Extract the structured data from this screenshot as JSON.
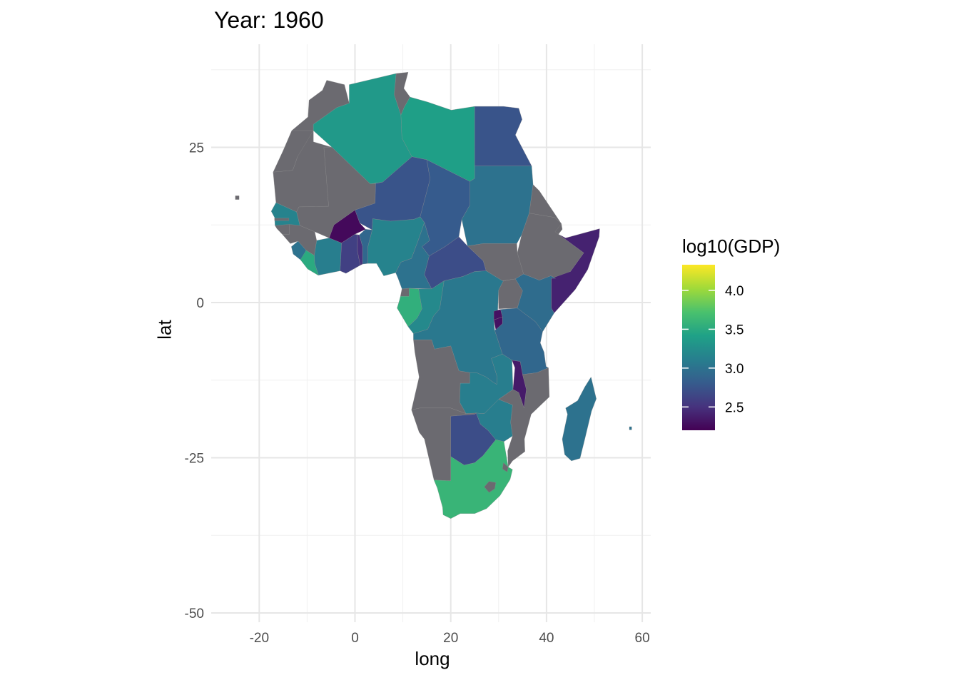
{
  "title": "Year: 1960",
  "chart_data": {
    "type": "map",
    "title": "Year: 1960",
    "xlabel": "long",
    "ylabel": "lat",
    "xlim": [
      -30,
      62
    ],
    "ylim": [
      -50,
      40
    ],
    "x_ticks": [
      -20,
      0,
      20,
      40,
      60
    ],
    "y_ticks": [
      -50,
      -25,
      0,
      25
    ],
    "grid": true,
    "legend": {
      "title": "log10(GDP)",
      "position": "right",
      "range": [
        2.2,
        4.33
      ],
      "ticks": [
        4.0,
        3.5,
        3.0,
        2.5
      ],
      "tick_labels": [
        "4.0",
        "3.5",
        "3.0",
        "2.5"
      ],
      "palette": [
        "#440154",
        "#46337e",
        "#365c8d",
        "#277f8e",
        "#1fa187",
        "#4ac16d",
        "#a0da39",
        "#fde725"
      ]
    },
    "missing_color": "#6b6a70",
    "regions": [
      {
        "id": "morocco",
        "value": null
      },
      {
        "id": "western-sahara",
        "value": null
      },
      {
        "id": "algeria",
        "value": 3.35
      },
      {
        "id": "tunisia",
        "value": null
      },
      {
        "id": "libya",
        "value": 3.4
      },
      {
        "id": "egypt",
        "value": 2.75
      },
      {
        "id": "mauritania",
        "value": null
      },
      {
        "id": "mali",
        "value": null
      },
      {
        "id": "niger",
        "value": 2.75
      },
      {
        "id": "chad",
        "value": 2.8
      },
      {
        "id": "sudan",
        "value": 3.0
      },
      {
        "id": "eritrea",
        "value": null
      },
      {
        "id": "ethiopia",
        "value": null
      },
      {
        "id": "djibouti",
        "value": null
      },
      {
        "id": "somalia",
        "value": 2.4
      },
      {
        "id": "senegal",
        "value": 3.15
      },
      {
        "id": "gambia",
        "value": null
      },
      {
        "id": "guinea-bissau",
        "value": null
      },
      {
        "id": "guinea",
        "value": null
      },
      {
        "id": "sierra-leone",
        "value": 3.0
      },
      {
        "id": "liberia",
        "value": 3.5
      },
      {
        "id": "cote-divoire",
        "value": 3.1
      },
      {
        "id": "burkina-faso",
        "value": 2.25
      },
      {
        "id": "ghana",
        "value": 2.6
      },
      {
        "id": "togo",
        "value": 2.5
      },
      {
        "id": "benin",
        "value": 2.9
      },
      {
        "id": "nigeria",
        "value": 3.15
      },
      {
        "id": "cameroon",
        "value": 3.0
      },
      {
        "id": "car",
        "value": 2.7
      },
      {
        "id": "south-sudan",
        "value": null
      },
      {
        "id": "equatorial-guinea",
        "value": null
      },
      {
        "id": "gabon",
        "value": 3.55
      },
      {
        "id": "congo",
        "value": 3.2
      },
      {
        "id": "drc",
        "value": 3.05
      },
      {
        "id": "uganda",
        "value": null
      },
      {
        "id": "kenya",
        "value": 2.95
      },
      {
        "id": "rwanda",
        "value": 2.3
      },
      {
        "id": "burundi",
        "value": 2.3
      },
      {
        "id": "tanzania",
        "value": 2.9
      },
      {
        "id": "angola",
        "value": null
      },
      {
        "id": "zambia",
        "value": 3.1
      },
      {
        "id": "malawi",
        "value": 2.35
      },
      {
        "id": "mozambique",
        "value": null
      },
      {
        "id": "zimbabwe",
        "value": 3.1
      },
      {
        "id": "namibia",
        "value": null
      },
      {
        "id": "botswana",
        "value": 2.7
      },
      {
        "id": "south-africa",
        "value": 3.6
      },
      {
        "id": "lesotho",
        "value": null
      },
      {
        "id": "swaziland",
        "value": null
      },
      {
        "id": "madagascar",
        "value": 3.0
      },
      {
        "id": "mauritius",
        "value": 3.0
      },
      {
        "id": "cape-verde",
        "value": null
      }
    ]
  }
}
